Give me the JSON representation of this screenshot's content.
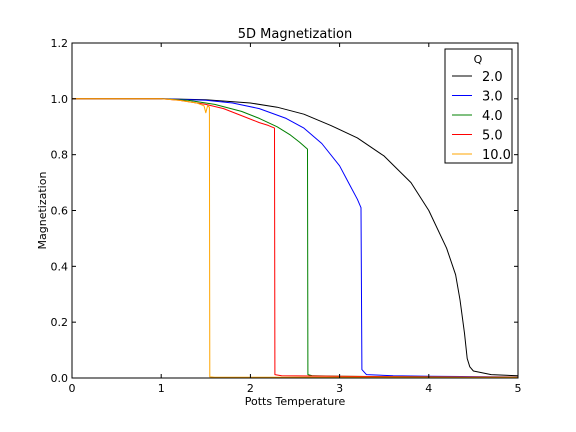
{
  "chart_data": {
    "type": "line",
    "title": "5D Magnetization",
    "xlabel": "Potts Temperature",
    "ylabel": "Magnetization",
    "xlim": [
      0,
      5
    ],
    "ylim": [
      0,
      1.2
    ],
    "xticks": [
      "0",
      "1",
      "2",
      "3",
      "4",
      "5"
    ],
    "yticks": [
      "0.0",
      "0.2",
      "0.4",
      "0.6",
      "0.8",
      "1.0",
      "1.2"
    ],
    "grid": false,
    "legend": {
      "title": "Q",
      "placement": "top-right"
    },
    "series": [
      {
        "name": "2.0",
        "color": "#000000",
        "x": [
          0.0,
          0.5,
          1.0,
          1.5,
          2.0,
          2.3,
          2.6,
          2.9,
          3.2,
          3.5,
          3.8,
          4.0,
          4.2,
          4.3,
          4.35,
          4.4,
          4.43,
          4.46,
          4.5,
          4.7,
          5.0
        ],
        "y": [
          1.0,
          1.0,
          1.0,
          0.997,
          0.985,
          0.97,
          0.945,
          0.905,
          0.86,
          0.795,
          0.7,
          0.6,
          0.465,
          0.37,
          0.28,
          0.16,
          0.07,
          0.04,
          0.025,
          0.012,
          0.008
        ]
      },
      {
        "name": "3.0",
        "color": "#0000ff",
        "x": [
          0.0,
          0.5,
          1.0,
          1.5,
          1.8,
          2.1,
          2.4,
          2.6,
          2.8,
          3.0,
          3.1,
          3.2,
          3.24,
          3.25,
          3.3,
          3.6,
          4.0,
          5.0
        ],
        "y": [
          1.0,
          1.0,
          1.0,
          0.995,
          0.985,
          0.965,
          0.93,
          0.895,
          0.84,
          0.76,
          0.7,
          0.64,
          0.61,
          0.03,
          0.012,
          0.008,
          0.006,
          0.004
        ]
      },
      {
        "name": "4.0",
        "color": "#008000",
        "x": [
          0.0,
          0.5,
          1.0,
          1.3,
          1.6,
          1.9,
          2.1,
          2.3,
          2.45,
          2.55,
          2.64,
          2.645,
          2.7,
          3.0,
          4.0,
          5.0
        ],
        "y": [
          1.0,
          1.0,
          1.0,
          0.995,
          0.98,
          0.955,
          0.93,
          0.9,
          0.87,
          0.845,
          0.82,
          0.012,
          0.008,
          0.006,
          0.004,
          0.003
        ]
      },
      {
        "name": "5.0",
        "color": "#ff0000",
        "x": [
          0.0,
          0.5,
          1.0,
          1.2,
          1.5,
          1.7,
          1.9,
          2.1,
          2.2,
          2.27,
          2.275,
          2.35,
          3.0,
          4.0,
          5.0
        ],
        "y": [
          1.0,
          1.0,
          1.0,
          0.995,
          0.98,
          0.965,
          0.94,
          0.915,
          0.905,
          0.895,
          0.012,
          0.008,
          0.006,
          0.004,
          0.003
        ]
      },
      {
        "name": "10.0",
        "color": "#ffa500",
        "x": [
          0.0,
          0.5,
          1.0,
          1.2,
          1.4,
          1.48,
          1.5,
          1.52,
          1.54,
          1.545,
          1.6,
          2.0,
          3.0,
          4.0,
          5.0
        ],
        "y": [
          1.0,
          1.0,
          1.0,
          0.995,
          0.985,
          0.975,
          0.95,
          0.975,
          0.97,
          0.004,
          0.003,
          0.003,
          0.003,
          0.003,
          0.003
        ]
      }
    ]
  }
}
